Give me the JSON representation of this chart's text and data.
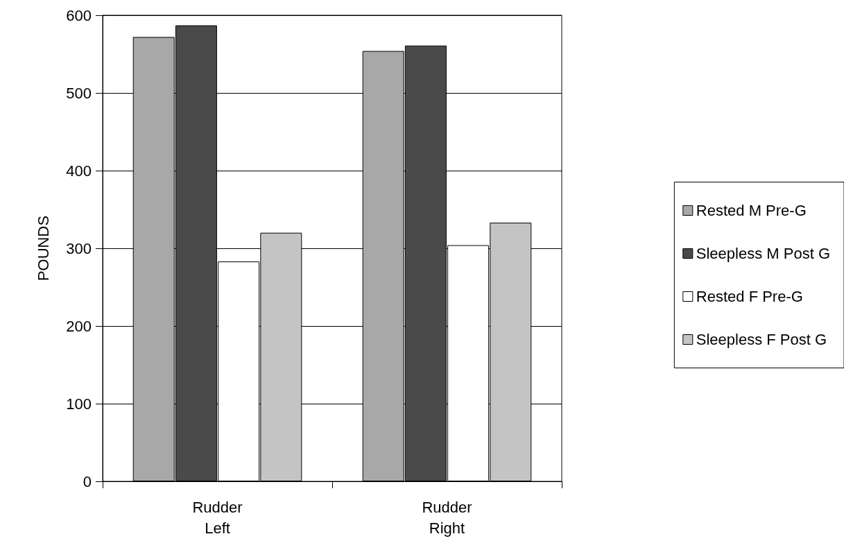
{
  "chart_data": {
    "type": "bar",
    "ylabel": "POUNDS",
    "categories": [
      "Rudder\nLeft",
      "Rudder\nRight"
    ],
    "series": [
      {
        "name": "Rested M Pre-G",
        "color": "#a8a8a8",
        "values": [
          572,
          554
        ]
      },
      {
        "name": "Sleepless M Post G",
        "color": "#4a4a4a",
        "values": [
          587,
          561
        ]
      },
      {
        "name": "Rested F Pre-G",
        "color": "#ffffff",
        "values": [
          283,
          304
        ]
      },
      {
        "name": "Sleepless F Post G",
        "color": "#c4c4c4",
        "values": [
          320,
          333
        ]
      }
    ],
    "ylim": [
      0,
      600
    ],
    "yticks": [
      0,
      100,
      200,
      300,
      400,
      500,
      600
    ],
    "grid": "y",
    "legend": "right"
  }
}
